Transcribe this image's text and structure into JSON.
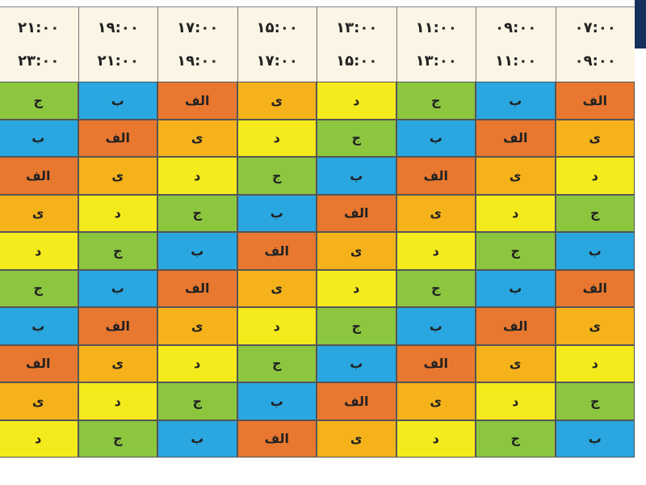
{
  "table": {
    "columns": [
      {
        "start": "۰۷:۰۰",
        "end": "۰۹:۰۰"
      },
      {
        "start": "۰۹:۰۰",
        "end": "۱۱:۰۰"
      },
      {
        "start": "۱۱:۰۰",
        "end": "۱۳:۰۰"
      },
      {
        "start": "۱۳:۰۰",
        "end": "۱۵:۰۰"
      },
      {
        "start": "۱۵:۰۰",
        "end": "۱۷:۰۰"
      },
      {
        "start": "۱۷:۰۰",
        "end": "۱۹:۰۰"
      },
      {
        "start": "۱۹:۰۰",
        "end": "۲۱:۰۰"
      },
      {
        "start": "۲۱:۰۰",
        "end": "۲۳:۰۰"
      }
    ],
    "rows": [
      [
        {
          "text": "الف",
          "color": "#e8782f"
        },
        {
          "text": "ب",
          "color": "#2aa7e0"
        },
        {
          "text": "ج",
          "color": "#8cc63f"
        },
        {
          "text": "د",
          "color": "#f4ea1c"
        },
        {
          "text": "ی",
          "color": "#f6b21b"
        },
        {
          "text": "الف",
          "color": "#e8782f"
        },
        {
          "text": "ب",
          "color": "#2aa7e0"
        },
        {
          "text": "ج",
          "color": "#8cc63f"
        }
      ],
      [
        {
          "text": "ی",
          "color": "#f6b21b"
        },
        {
          "text": "الف",
          "color": "#e8782f"
        },
        {
          "text": "ب",
          "color": "#2aa7e0"
        },
        {
          "text": "ج",
          "color": "#8cc63f"
        },
        {
          "text": "د",
          "color": "#f4ea1c"
        },
        {
          "text": "ی",
          "color": "#f6b21b"
        },
        {
          "text": "الف",
          "color": "#e8782f"
        },
        {
          "text": "ب",
          "color": "#2aa7e0"
        }
      ],
      [
        {
          "text": "د",
          "color": "#f4ea1c"
        },
        {
          "text": "ی",
          "color": "#f6b21b"
        },
        {
          "text": "الف",
          "color": "#e8782f"
        },
        {
          "text": "ب",
          "color": "#2aa7e0"
        },
        {
          "text": "ج",
          "color": "#8cc63f"
        },
        {
          "text": "د",
          "color": "#f4ea1c"
        },
        {
          "text": "ی",
          "color": "#f6b21b"
        },
        {
          "text": "الف",
          "color": "#e8782f"
        }
      ],
      [
        {
          "text": "ج",
          "color": "#8cc63f"
        },
        {
          "text": "د",
          "color": "#f4ea1c"
        },
        {
          "text": "ی",
          "color": "#f6b21b"
        },
        {
          "text": "الف",
          "color": "#e8782f"
        },
        {
          "text": "ب",
          "color": "#2aa7e0"
        },
        {
          "text": "ج",
          "color": "#8cc63f"
        },
        {
          "text": "د",
          "color": "#f4ea1c"
        },
        {
          "text": "ی",
          "color": "#f6b21b"
        }
      ],
      [
        {
          "text": "ب",
          "color": "#2aa7e0"
        },
        {
          "text": "ج",
          "color": "#8cc63f"
        },
        {
          "text": "د",
          "color": "#f4ea1c"
        },
        {
          "text": "ی",
          "color": "#f6b21b"
        },
        {
          "text": "الف",
          "color": "#e8782f"
        },
        {
          "text": "ب",
          "color": "#2aa7e0"
        },
        {
          "text": "ج",
          "color": "#8cc63f"
        },
        {
          "text": "د",
          "color": "#f4ea1c"
        }
      ],
      [
        {
          "text": "الف",
          "color": "#e8782f"
        },
        {
          "text": "ب",
          "color": "#2aa7e0"
        },
        {
          "text": "ج",
          "color": "#8cc63f"
        },
        {
          "text": "د",
          "color": "#f4ea1c"
        },
        {
          "text": "ی",
          "color": "#f6b21b"
        },
        {
          "text": "الف",
          "color": "#e8782f"
        },
        {
          "text": "ب",
          "color": "#2aa7e0"
        },
        {
          "text": "ج",
          "color": "#8cc63f"
        }
      ],
      [
        {
          "text": "ی",
          "color": "#f6b21b"
        },
        {
          "text": "الف",
          "color": "#e8782f"
        },
        {
          "text": "ب",
          "color": "#2aa7e0"
        },
        {
          "text": "ج",
          "color": "#8cc63f"
        },
        {
          "text": "د",
          "color": "#f4ea1c"
        },
        {
          "text": "ی",
          "color": "#f6b21b"
        },
        {
          "text": "الف",
          "color": "#e8782f"
        },
        {
          "text": "ب",
          "color": "#2aa7e0"
        }
      ],
      [
        {
          "text": "د",
          "color": "#f4ea1c"
        },
        {
          "text": "ی",
          "color": "#f6b21b"
        },
        {
          "text": "الف",
          "color": "#e8782f"
        },
        {
          "text": "ب",
          "color": "#2aa7e0"
        },
        {
          "text": "ج",
          "color": "#8cc63f"
        },
        {
          "text": "د",
          "color": "#f4ea1c"
        },
        {
          "text": "ی",
          "color": "#f6b21b"
        },
        {
          "text": "الف",
          "color": "#e8782f"
        }
      ],
      [
        {
          "text": "ج",
          "color": "#8cc63f"
        },
        {
          "text": "د",
          "color": "#f4ea1c"
        },
        {
          "text": "ی",
          "color": "#f6b21b"
        },
        {
          "text": "الف",
          "color": "#e8782f"
        },
        {
          "text": "ب",
          "color": "#2aa7e0"
        },
        {
          "text": "ج",
          "color": "#8cc63f"
        },
        {
          "text": "د",
          "color": "#f4ea1c"
        },
        {
          "text": "ی",
          "color": "#f6b21b"
        }
      ],
      [
        {
          "text": "ب",
          "color": "#2aa7e0"
        },
        {
          "text": "ج",
          "color": "#8cc63f"
        },
        {
          "text": "د",
          "color": "#f4ea1c"
        },
        {
          "text": "ی",
          "color": "#f6b21b"
        },
        {
          "text": "الف",
          "color": "#e8782f"
        },
        {
          "text": "ب",
          "color": "#2aa7e0"
        },
        {
          "text": "ج",
          "color": "#8cc63f"
        },
        {
          "text": "د",
          "color": "#f4ea1c"
        }
      ]
    ]
  }
}
